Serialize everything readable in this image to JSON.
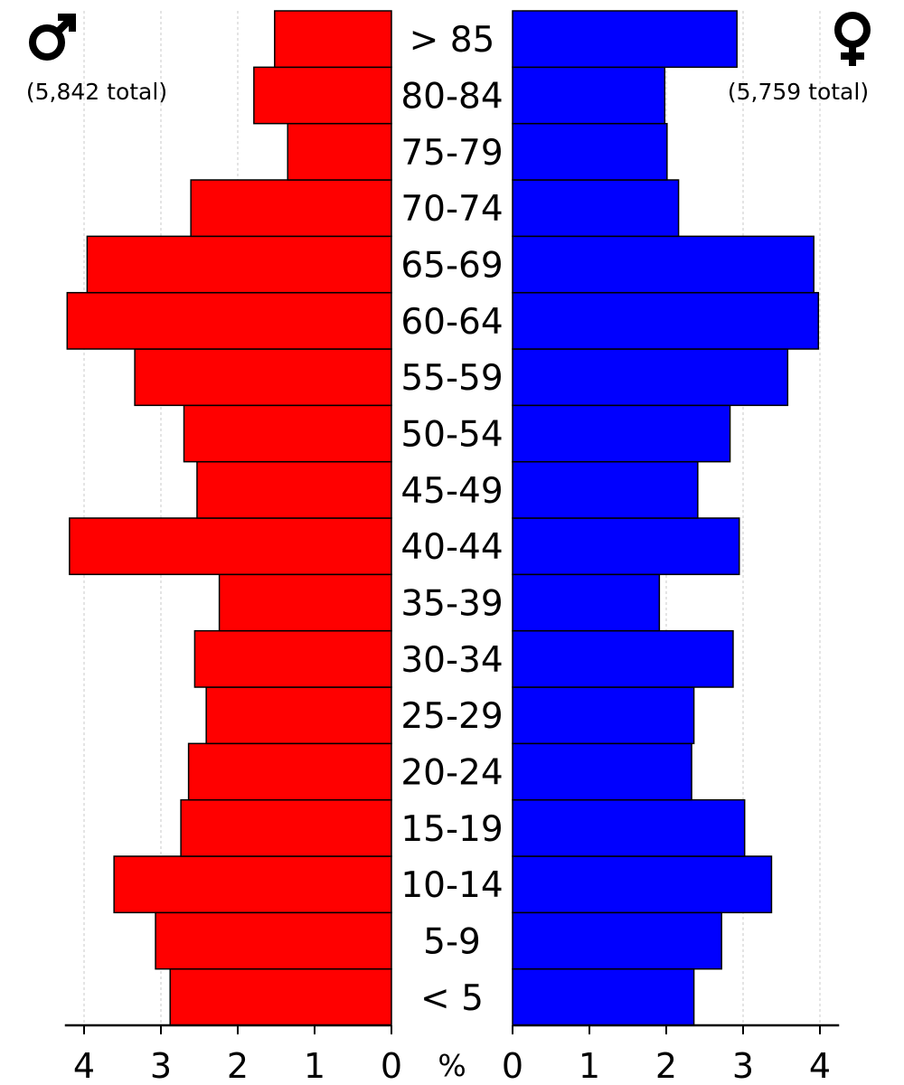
{
  "chart_data": {
    "type": "bar",
    "subtype": "population-pyramid",
    "categories": [
      "< 5",
      "5-9",
      "10-14",
      "15-19",
      "20-24",
      "25-29",
      "30-34",
      "35-39",
      "40-44",
      "45-49",
      "50-54",
      "55-59",
      "60-64",
      "65-69",
      "70-74",
      "75-79",
      "80-84",
      "> 85"
    ],
    "series": [
      {
        "sex": "male",
        "color": "#ff0000",
        "values": [
          2.88,
          3.07,
          3.61,
          2.74,
          2.64,
          2.41,
          2.56,
          2.24,
          4.19,
          2.53,
          2.7,
          3.34,
          4.22,
          3.96,
          2.61,
          1.35,
          1.79,
          1.52
        ]
      },
      {
        "sex": "female",
        "color": "#0000ff",
        "values": [
          2.36,
          2.72,
          3.37,
          3.02,
          2.33,
          2.36,
          2.87,
          1.91,
          2.95,
          2.41,
          2.83,
          3.58,
          3.98,
          3.92,
          2.16,
          2.01,
          1.98,
          2.92
        ]
      }
    ],
    "male_total_label": "(5,842 total)",
    "female_total_label": "(5,759 total)",
    "male_symbol": "♂",
    "female_symbol": "♀",
    "x_unit_label": "%",
    "x_ticks": [
      "0",
      "1",
      "2",
      "3",
      "4"
    ],
    "xlim": [
      0,
      4.25
    ],
    "grid": true
  }
}
